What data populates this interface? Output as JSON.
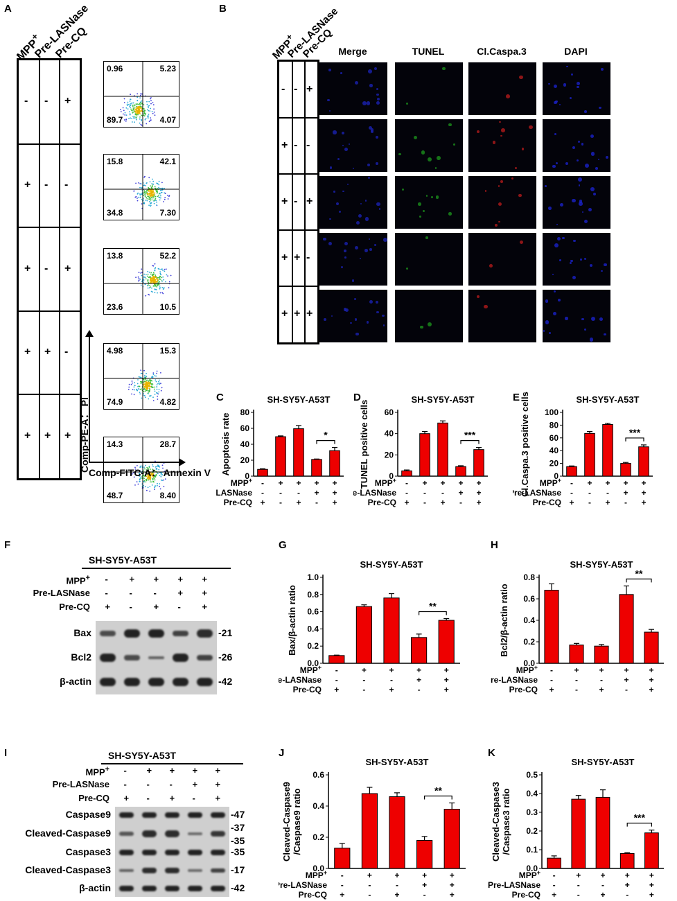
{
  "panels": {
    "A": "A",
    "B": "B",
    "C": "C",
    "D": "D",
    "E": "E",
    "F": "F",
    "G": "G",
    "H": "H",
    "I": "I",
    "J": "J",
    "K": "K"
  },
  "conditions": {
    "mpp": "MPP",
    "mpp_sup": "+",
    "lasnase": "Pre-LASNase",
    "cq": "Pre-CQ",
    "signs": {
      "mpp": [
        "-",
        "+",
        "+",
        "+",
        "+"
      ],
      "lasnase": [
        "-",
        "-",
        "-",
        "+",
        "+"
      ],
      "cq": [
        "+",
        "-",
        "+",
        "-",
        "+"
      ]
    }
  },
  "panelA": {
    "ylabel": "Comp-PE-A： PI",
    "xlabel": "Comp-FITC-A：  Annexin V",
    "quadrants": [
      {
        "ul": "0.96",
        "ur": "5.23",
        "ll": "89.7",
        "lr": "4.07"
      },
      {
        "ul": "15.8",
        "ur": "42.1",
        "ll": "34.8",
        "lr": "7.30"
      },
      {
        "ul": "13.8",
        "ur": "52.2",
        "ll": "23.6",
        "lr": "10.5"
      },
      {
        "ul": "4.98",
        "ur": "15.3",
        "ll": "74.9",
        "lr": "4.82"
      },
      {
        "ul": "14.3",
        "ur": "28.7",
        "ll": "48.7",
        "lr": "8.40"
      }
    ]
  },
  "panelB": {
    "headers": [
      "Merge",
      "TUNEL",
      "Cl.Caspa.3",
      "DAPI"
    ]
  },
  "westernF": {
    "title": "SH-SY5Y-A53T",
    "rows": [
      {
        "label": "Bax",
        "mw": "-21"
      },
      {
        "label": "Bcl2",
        "mw": "-26"
      },
      {
        "label": "β-actin",
        "mw": "-42"
      }
    ]
  },
  "westernI": {
    "title": "SH-SY5Y-A53T",
    "rows": [
      {
        "label": "Caspase9",
        "mw": "-47"
      },
      {
        "label": "Cleaved-Caspase9",
        "mw": "-37",
        "mw2": "-35"
      },
      {
        "label": "Caspase3",
        "mw": "-35"
      },
      {
        "label": "Cleaved-Caspase3",
        "mw": "-17"
      },
      {
        "label": "β-actin",
        "mw": "-42"
      }
    ]
  },
  "chart_data": [
    {
      "id": "C",
      "type": "bar",
      "title": "SH-SY5Y-A53T",
      "ylabel": "Apoptosis rate",
      "ylim": [
        0,
        80
      ],
      "ticks": [
        0,
        20,
        40,
        60,
        80
      ],
      "values": [
        8.5,
        49.5,
        59.5,
        21,
        32
      ],
      "errors": [
        0.8,
        1,
        4,
        0.5,
        4
      ],
      "sig": "*",
      "sig_between": [
        3,
        4
      ]
    },
    {
      "id": "D",
      "type": "bar",
      "title": "SH-SY5Y-A53T",
      "ylabel": "TUNEL positive cells",
      "ylim": [
        0,
        60
      ],
      "ticks": [
        0,
        20,
        40,
        60
      ],
      "values": [
        5,
        40,
        50,
        9,
        25
      ],
      "errors": [
        0.8,
        2,
        2,
        0.8,
        2
      ],
      "sig": "***",
      "sig_between": [
        3,
        4
      ]
    },
    {
      "id": "E",
      "type": "bar",
      "title": "SH-SY5Y-A53T",
      "ylabel": "Cl.Caspa.3 positive cells",
      "ylim": [
        0,
        100
      ],
      "ticks": [
        0,
        20,
        40,
        60,
        80,
        100
      ],
      "values": [
        15,
        67,
        81,
        20,
        46
      ],
      "errors": [
        1,
        3,
        2,
        1.5,
        3
      ],
      "sig": "***",
      "sig_between": [
        3,
        4
      ]
    },
    {
      "id": "G",
      "type": "bar",
      "title": "SH-SY5Y-A53T",
      "ylabel": "Bax/β-actin ratio",
      "ylim": [
        0,
        1.0
      ],
      "ticks": [
        "0.0",
        "0.2",
        "0.4",
        "0.6",
        "0.8",
        "1.0"
      ],
      "values": [
        0.09,
        0.66,
        0.76,
        0.3,
        0.5
      ],
      "errors": [
        0.005,
        0.02,
        0.05,
        0.04,
        0.02
      ],
      "sig": "**",
      "sig_between": [
        3,
        4
      ]
    },
    {
      "id": "H",
      "type": "bar",
      "title": "SH-SY5Y-A53T",
      "ylabel": "Bcl2/β-actin ratio",
      "ylim": [
        0,
        0.8
      ],
      "ticks": [
        "0.0",
        "0.2",
        "0.4",
        "0.6",
        "0.8"
      ],
      "values": [
        0.68,
        0.17,
        0.16,
        0.64,
        0.29
      ],
      "errors": [
        0.06,
        0.015,
        0.015,
        0.08,
        0.025
      ],
      "sig": "**",
      "sig_between": [
        3,
        4
      ]
    },
    {
      "id": "J",
      "type": "bar",
      "title": "SH-SY5Y-A53T",
      "ylabel": "Cleaved-Caspase9\n/Caspase9 ratio",
      "ylim": [
        0,
        0.6
      ],
      "ticks": [
        "0.0",
        "0.2",
        "0.4",
        "0.6"
      ],
      "values": [
        0.13,
        0.48,
        0.46,
        0.18,
        0.38
      ],
      "errors": [
        0.03,
        0.04,
        0.025,
        0.025,
        0.04
      ],
      "sig": "**",
      "sig_between": [
        3,
        4
      ]
    },
    {
      "id": "K",
      "type": "bar",
      "title": "SH-SY5Y-A53T",
      "ylabel": "Cleaved-Caspase3\n/Caspase3 ratio",
      "ylim": [
        0,
        0.5
      ],
      "ticks": [
        "0.0",
        "0.1",
        "0.2",
        "0.3",
        "0.4",
        "0.5"
      ],
      "values": [
        0.055,
        0.37,
        0.38,
        0.08,
        0.19
      ],
      "errors": [
        0.012,
        0.02,
        0.04,
        0.004,
        0.015
      ],
      "sig": "***",
      "sig_between": [
        3,
        4
      ]
    }
  ],
  "colors": {
    "bar": "#ee0000",
    "outline": "#000000"
  }
}
